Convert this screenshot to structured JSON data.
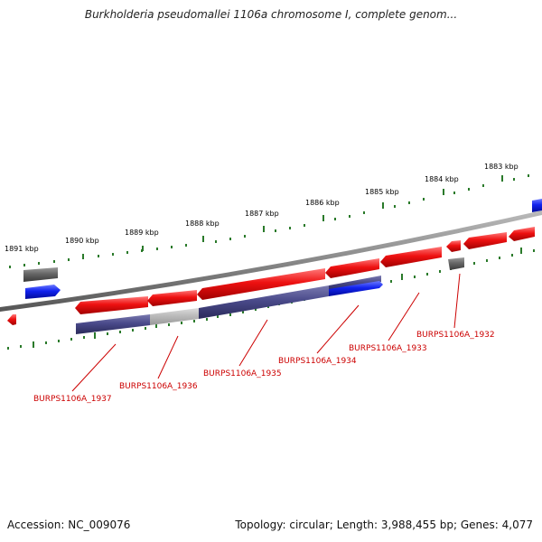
{
  "title": "Burkholderia pseudomallei 1106a chromosome I, complete genom...",
  "footer": {
    "accession": "Accession: NC_009076",
    "topology": "Topology: circular; Length: 3,988,455 bp; Genes: 4,077"
  },
  "scale_labels": [
    "1891 kbp",
    "1890 kbp",
    "1889 kbp",
    "1888 kbp",
    "1887 kbp",
    "1886 kbp",
    "1885 kbp",
    "1884 kbp",
    "1883 kbp"
  ],
  "gene_labels": [
    "BURPS1106A_1937",
    "BURPS1106A_1936",
    "BURPS1106A_1935",
    "BURPS1106A_1934",
    "BURPS1106A_1933",
    "BURPS1106A_1932"
  ],
  "colors": {
    "cds_red": "#ee1111",
    "cds_blue": "#1122ee",
    "gray_feature": "#666666",
    "navy_feature": "#4a4a8a",
    "light_gray_feature": "#bbbbbb",
    "backbone": "#888888",
    "tick_green": "#2a7a2a",
    "label_red": "#cc0000"
  }
}
